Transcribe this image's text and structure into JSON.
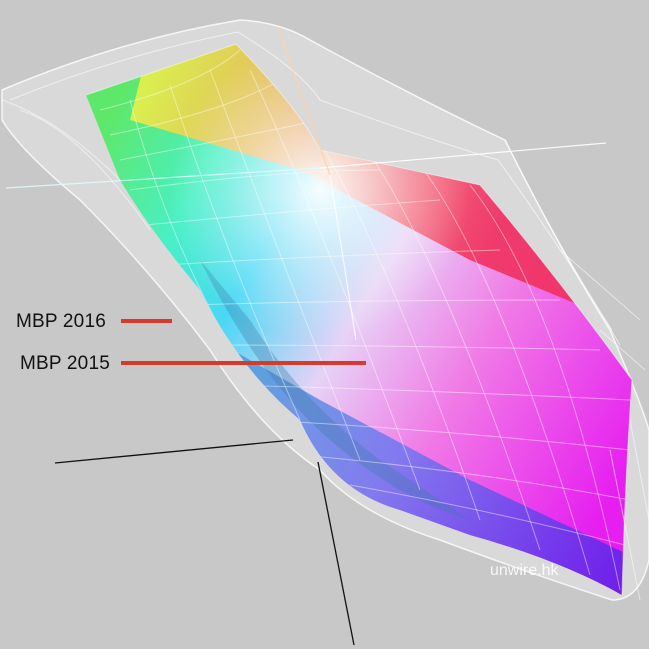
{
  "labels": {
    "mbp_2016": "MBP 2016",
    "mbp_2015": "MBP 2015"
  },
  "watermark": "unwire.hk",
  "colors": {
    "background": "#c8c8c8",
    "pointer_line": "#d63a2a",
    "outer_shell": "#ffffff",
    "axis_line": "#111111"
  }
}
